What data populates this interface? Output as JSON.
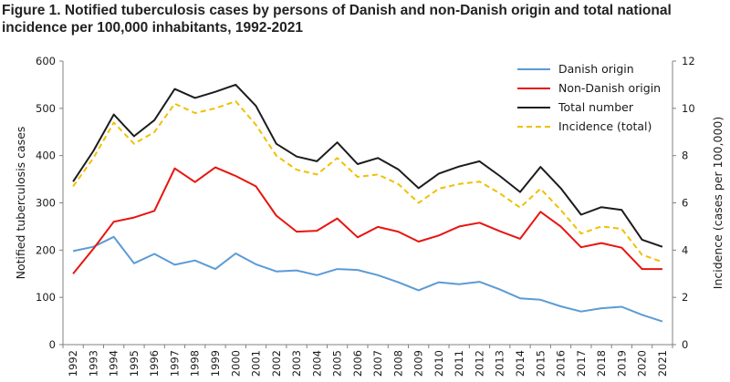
{
  "title": "Figure 1. Notified tuberculosis cases by persons of Danish and non-Danish origin and total national incidence per 100,000 inhabitants, 1992-2021",
  "colors": {
    "danish": "#5b9bd5",
    "non_danish": "#e8140f",
    "total": "#1c1c1c",
    "incidence": "#f0c000",
    "axis": "#808080"
  },
  "chart_data": {
    "type": "line",
    "title": "Figure 1. Notified tuberculosis cases by persons of Danish and non-Danish origin and total national incidence per 100,000 inhabitants, 1992-2021",
    "xlabel": "",
    "ylabel": "Notified tuberculosis cases",
    "y2label": "Incidence  (cases per 100,000)",
    "ylim": [
      0,
      600
    ],
    "y2lim": [
      0,
      12
    ],
    "yticks": [
      "0",
      "100",
      "200",
      "300",
      "400",
      "500",
      "600"
    ],
    "y2ticks": [
      "0",
      "2",
      "4",
      "6",
      "8",
      "10",
      "12"
    ],
    "categories": [
      "1992",
      "1993",
      "1994",
      "1995",
      "1996",
      "1997",
      "1998",
      "1999",
      "2000",
      "2001",
      "2002",
      "2003",
      "2004",
      "2005",
      "2006",
      "2007",
      "2008",
      "2009",
      "2010",
      "2011",
      "2012",
      "2013",
      "2014",
      "2015",
      "2016",
      "2017",
      "2018",
      "2019",
      "2020",
      "2021"
    ],
    "legend_position": "top-right",
    "grid": false,
    "series": [
      {
        "name": "Danish origin",
        "axis": "left",
        "style": "solid",
        "color": "#5b9bd5",
        "values": [
          198,
          207,
          228,
          172,
          192,
          169,
          178,
          160,
          193,
          170,
          155,
          157,
          147,
          160,
          158,
          147,
          132,
          115,
          132,
          128,
          133,
          117,
          98,
          95,
          81,
          70,
          77,
          80,
          63,
          49
        ]
      },
      {
        "name": "Non-Danish origin",
        "axis": "left",
        "style": "solid",
        "color": "#e8140f",
        "values": [
          150,
          203,
          260,
          269,
          283,
          373,
          344,
          375,
          357,
          335,
          273,
          239,
          241,
          267,
          227,
          249,
          239,
          218,
          231,
          250,
          258,
          240,
          224,
          281,
          250,
          206,
          215,
          205,
          160,
          160
        ]
      },
      {
        "name": "Total number",
        "axis": "left",
        "style": "solid",
        "color": "#1c1c1c",
        "values": [
          345,
          410,
          487,
          441,
          475,
          541,
          522,
          535,
          550,
          505,
          425,
          398,
          388,
          428,
          382,
          395,
          371,
          331,
          362,
          377,
          388,
          357,
          323,
          376,
          331,
          275,
          291,
          285,
          222,
          207
        ]
      },
      {
        "name": "Incidence (total)",
        "axis": "right",
        "style": "dashed",
        "color": "#f0c000",
        "values": [
          6.7,
          7.9,
          9.4,
          8.5,
          9.0,
          10.2,
          9.8,
          10.0,
          10.3,
          9.3,
          8.0,
          7.4,
          7.2,
          7.9,
          7.1,
          7.2,
          6.8,
          6.0,
          6.6,
          6.8,
          6.9,
          6.4,
          5.8,
          6.6,
          5.7,
          4.7,
          5.0,
          4.9,
          3.8,
          3.5
        ]
      }
    ]
  }
}
